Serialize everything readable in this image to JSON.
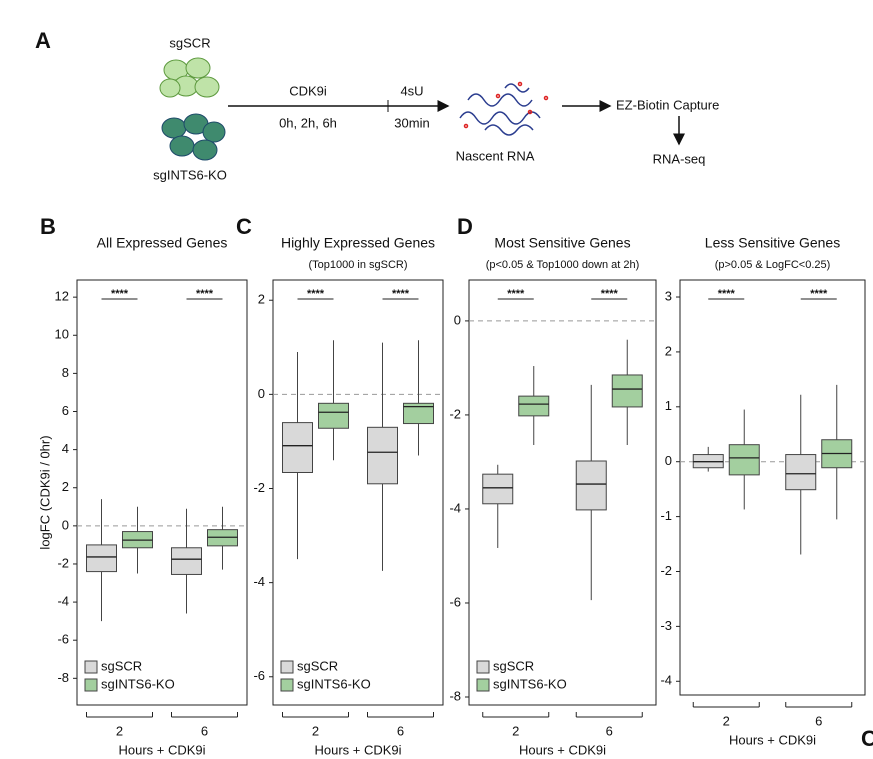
{
  "diagram": {
    "panel_label": "A",
    "condition_1": "sgSCR",
    "condition_2": "sgINTS6-KO",
    "treatment": "CDK9i",
    "timepoints": "0h, 2h, 6h",
    "label_4su": "4sU",
    "label_30min": "30min",
    "nascent": "Nascent RNA",
    "capture": "EZ-Biotin Capture",
    "sequencing": "RNA-seq"
  },
  "fragment_label": "C",
  "chart_data": [
    {
      "type": "box",
      "panel_label": "B",
      "title": "All Expressed Genes",
      "ylabel": "logFC (CDK9i / 0hr)",
      "xlabel": "Hours + CDK9i",
      "categories": [
        "2",
        "6"
      ],
      "ylim": [
        -9.4,
        12.9
      ],
      "yticks": [
        -8,
        -6,
        -4,
        -2,
        0,
        2,
        4,
        6,
        8,
        10,
        12
      ],
      "hline": 0,
      "legend": true,
      "annotations": [
        "****",
        "****"
      ],
      "series": [
        {
          "name": "sgSCR",
          "color": "#d9d9d9",
          "values": [
            {
              "whislo": -5.0,
              "q1": -2.4,
              "median": -1.63,
              "q3": -1.0,
              "whishi": 1.4
            },
            {
              "whislo": -4.6,
              "q1": -2.55,
              "median": -1.75,
              "q3": -1.15,
              "whishi": 0.9
            }
          ]
        },
        {
          "name": "sgINTS6-KO",
          "color": "#a3cf9f",
          "values": [
            {
              "whislo": -2.5,
              "q1": -1.15,
              "median": -0.75,
              "q3": -0.3,
              "whishi": 1.0
            },
            {
              "whislo": -2.3,
              "q1": -1.05,
              "median": -0.6,
              "q3": -0.2,
              "whishi": 1.0
            }
          ]
        }
      ]
    },
    {
      "type": "box",
      "panel_label": "C",
      "title": "Highly Expressed Genes",
      "subtitle": "(Top1000 in sgSCR)",
      "xlabel": "Hours + CDK9i",
      "categories": [
        "2",
        "6"
      ],
      "ylim": [
        -6.6,
        2.43
      ],
      "yticks": [
        -6,
        -4,
        -2,
        0,
        2
      ],
      "hline": 0,
      "legend": true,
      "annotations": [
        "****",
        "****"
      ],
      "series": [
        {
          "name": "sgSCR",
          "color": "#d9d9d9",
          "values": [
            {
              "whislo": -3.5,
              "q1": -1.66,
              "median": -1.09,
              "q3": -0.6,
              "whishi": 0.9
            },
            {
              "whislo": -3.75,
              "q1": -1.9,
              "median": -1.23,
              "q3": -0.7,
              "whishi": 1.1
            }
          ]
        },
        {
          "name": "sgINTS6-KO",
          "color": "#a3cf9f",
          "values": [
            {
              "whislo": -1.4,
              "q1": -0.72,
              "median": -0.38,
              "q3": -0.19,
              "whishi": 1.15
            },
            {
              "whislo": -1.3,
              "q1": -0.62,
              "median": -0.26,
              "q3": -0.19,
              "whishi": 1.15
            }
          ]
        }
      ]
    },
    {
      "type": "box",
      "panel_label": "D",
      "title": "Most Sensitive Genes",
      "subtitle": "(p<0.05 & Top1000 down at 2h)",
      "xlabel": "Hours + CDK9i",
      "categories": [
        "2",
        "6"
      ],
      "ylim": [
        -8.17,
        0.87
      ],
      "yticks": [
        -8,
        -6,
        -4,
        -2,
        0
      ],
      "hline": 0,
      "legend": true,
      "annotations": [
        "****",
        "****"
      ],
      "series": [
        {
          "name": "sgSCR",
          "color": "#d9d9d9",
          "values": [
            {
              "whislo": -4.83,
              "q1": -3.89,
              "median": -3.55,
              "q3": -3.26,
              "whishi": -3.06
            },
            {
              "whislo": -5.94,
              "q1": -4.02,
              "median": -3.47,
              "q3": -2.98,
              "whishi": -1.36
            }
          ]
        },
        {
          "name": "sgINTS6-KO",
          "color": "#a3cf9f",
          "values": [
            {
              "whislo": -2.64,
              "q1": -2.02,
              "median": -1.77,
              "q3": -1.6,
              "whishi": -0.96
            },
            {
              "whislo": -2.64,
              "q1": -1.83,
              "median": -1.45,
              "q3": -1.15,
              "whishi": -0.4
            }
          ]
        }
      ]
    },
    {
      "type": "box",
      "title": "Less Sensitive Genes",
      "subtitle": "(p>0.05 & LogFC<0.25)",
      "xlabel": "Hours + CDK9i",
      "categories": [
        "2",
        "6"
      ],
      "ylim": [
        -4.25,
        3.31
      ],
      "yticks": [
        -4,
        -3,
        -2,
        -1,
        0,
        1,
        2,
        3
      ],
      "hline": 0,
      "legend": false,
      "annotations": [
        "****",
        "****"
      ],
      "series": [
        {
          "name": "sgSCR",
          "color": "#d9d9d9",
          "values": [
            {
              "whislo": -0.18,
              "q1": -0.11,
              "median": 0,
              "q3": 0.13,
              "whishi": 0.27
            },
            {
              "whislo": -1.69,
              "q1": -0.51,
              "median": -0.22,
              "q3": 0.13,
              "whishi": 1.22
            }
          ]
        },
        {
          "name": "sgINTS6-KO",
          "color": "#a3cf9f",
          "values": [
            {
              "whislo": -0.87,
              "q1": -0.24,
              "median": 0.07,
              "q3": 0.31,
              "whishi": 0.95
            },
            {
              "whislo": -1.05,
              "q1": -0.11,
              "median": 0.15,
              "q3": 0.4,
              "whishi": 1.4
            }
          ]
        }
      ]
    }
  ]
}
